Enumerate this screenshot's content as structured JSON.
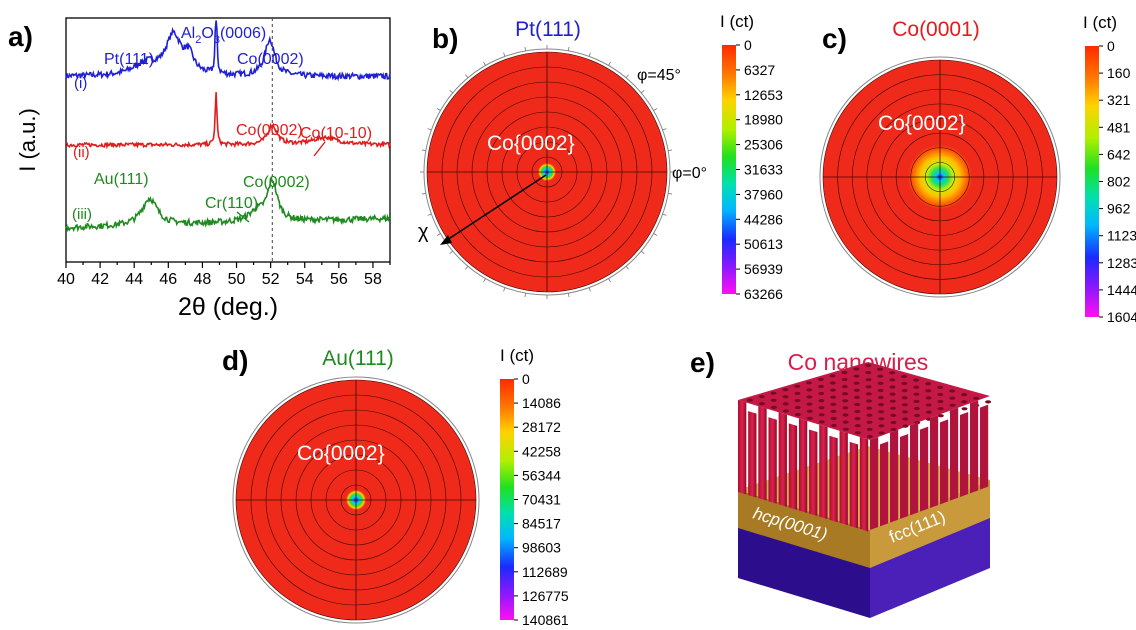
{
  "panels": {
    "a": {
      "letter": "a)"
    },
    "b": {
      "letter": "b)"
    },
    "c": {
      "letter": "c)"
    },
    "d": {
      "letter": "d)"
    },
    "e": {
      "letter": "e)"
    }
  },
  "colors": {
    "blue": "#1f1fd6",
    "red": "#e01c1c",
    "green": "#1f8a1f",
    "pole_red": "#f02a1a",
    "wire": "#d81e4c",
    "gold": "#b98a2e",
    "base": "#3e18a8"
  },
  "chart_data": [
    {
      "type": "line",
      "panel": "a",
      "xlabel": "2θ (deg.)",
      "ylabel": "I (a.u.)",
      "xlim": [
        40,
        59
      ],
      "xticks": [
        "40",
        "42",
        "44",
        "46",
        "48",
        "50",
        "52",
        "54",
        "56",
        "58"
      ],
      "reference_line_x": 52,
      "series": [
        {
          "name": "(i)",
          "color": "#1f1fd6",
          "baseline": 0.76,
          "noise": 0.012,
          "slope": 0.0,
          "peaks": [
            [
              44.7,
              0.05,
              0.9
            ],
            [
              46.3,
              0.16,
              0.55
            ],
            [
              47.2,
              0.07,
              0.35
            ],
            [
              48.8,
              0.34,
              0.05
            ],
            [
              51.95,
              0.15,
              0.35
            ]
          ]
        },
        {
          "name": "(ii)",
          "color": "#e01c1c",
          "baseline": 0.48,
          "noise": 0.008,
          "slope": 0.0,
          "peaks": [
            [
              48.8,
              0.22,
              0.06
            ],
            [
              52.1,
              0.08,
              0.32
            ],
            [
              55.2,
              0.03,
              0.9
            ]
          ]
        },
        {
          "name": "(iii)",
          "color": "#1f8a1f",
          "baseline": 0.14,
          "noise": 0.012,
          "slope": 0.002,
          "peaks": [
            [
              44.9,
              0.11,
              0.55
            ],
            [
              51.2,
              0.04,
              0.6
            ],
            [
              52.1,
              0.16,
              0.35
            ]
          ]
        }
      ],
      "annotations": [
        {
          "text": "Pt(111)",
          "color": "#1f1fd6"
        },
        {
          "text": "Al",
          "sub1": "2",
          "mid": "O",
          "sub2": "3",
          "tail": "(0006)",
          "color": "#1f1fd6"
        },
        {
          "text": "Co(0002)",
          "color": "#1f1fd6"
        },
        {
          "text": "Co(0002)",
          "color": "#e01c1c"
        },
        {
          "text": "Co(10-10)",
          "color": "#e01c1c"
        },
        {
          "text": "Au(111)",
          "color": "#1f8a1f"
        },
        {
          "text": "Cr(110)",
          "color": "#1f8a1f"
        },
        {
          "text": "Co(0002)",
          "color": "#1f8a1f"
        }
      ]
    },
    {
      "type": "heatmap",
      "panel": "b",
      "title": "Pt(111)",
      "title_color": "#1f1fd6",
      "inner_label": "Co{0002}",
      "phi_labels": [
        "φ=45°",
        "φ=0°"
      ],
      "chi_label": "χ",
      "colorbar_title": "I (ct)",
      "colorbar_ticks": [
        "0",
        "6327",
        "12653",
        "18980",
        "25306",
        "31633",
        "37960",
        "44286",
        "50613",
        "56939",
        "63266"
      ]
    },
    {
      "type": "heatmap",
      "panel": "c",
      "title": "Co(0001)",
      "title_color": "#e01c1c",
      "inner_label": "Co{0002}",
      "colorbar_title": "I (ct)",
      "colorbar_ticks": [
        "0",
        "160",
        "321",
        "481",
        "642",
        "802",
        "962",
        "1123",
        "1283",
        "1444",
        "1604"
      ]
    },
    {
      "type": "heatmap",
      "panel": "d",
      "title": "Au(111)",
      "title_color": "#1f8a1f",
      "inner_label": "Co{0002}",
      "colorbar_title": "I (ct)",
      "colorbar_ticks": [
        "0",
        "14086",
        "28172",
        "42258",
        "56344",
        "70431",
        "84517",
        "98603",
        "112689",
        "126775",
        "140861"
      ]
    }
  ],
  "schematic": {
    "title": "Co nanowires",
    "layer_left": "hcp(0001)",
    "layer_right": "fcc(111)"
  }
}
